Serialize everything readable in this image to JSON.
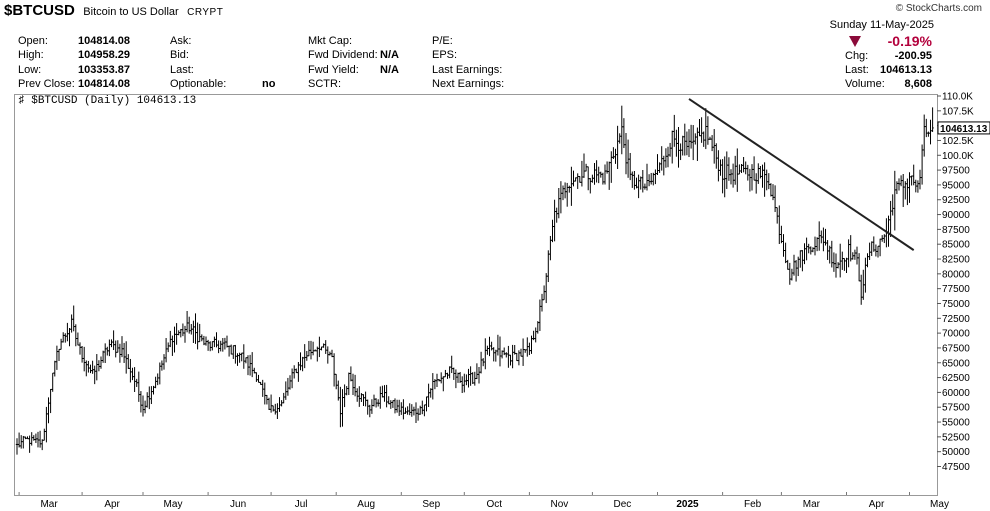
{
  "header": {
    "symbol": "$BTCUSD",
    "description": "Bitcoin to US Dollar",
    "exchange": "CRYPT",
    "copyright": "© StockCharts.com",
    "date": "Sunday  11-May-2025",
    "open_label": "Open:",
    "open": "104814.08",
    "high_label": "High:",
    "high": "104958.29",
    "low_label": "Low:",
    "low": "103353.87",
    "prev_close_label": "Prev Close:",
    "prev_close": "104814.08",
    "ask_label": "Ask:",
    "bid_label": "Bid:",
    "last_label": "Last:",
    "optionable_label": "Optionable:",
    "optionable": "no",
    "mktcap_label": "Mkt Cap:",
    "fwd_div_label": "Fwd Dividend:",
    "fwd_div": "N/A",
    "fwd_yield_label": "Fwd Yield:",
    "fwd_yield": "N/A",
    "sctr_label": "SCTR:",
    "pe_label": "P/E:",
    "eps_label": "EPS:",
    "last_earn_label": "Last Earnings:",
    "next_earn_label": "Next Earnings:",
    "pct_change": "-0.19%",
    "chg_label": "Chg:",
    "chg": "-200.95",
    "last2_label": "Last:",
    "last2": "104613.13",
    "volume_label": "Volume:",
    "volume": "8,608",
    "chart_label": "$BTCUSD (Daily) 104613.13"
  },
  "chart_data": {
    "type": "ohlc",
    "title": "$BTCUSD (Daily) 104613.13",
    "y_axis_side": "right",
    "ylim": [
      47000,
      111000
    ],
    "y_ticks": [
      47500,
      50000,
      52500,
      55000,
      57500,
      60000,
      62500,
      65000,
      67500,
      70000,
      72500,
      75000,
      77500,
      80000,
      82500,
      85000,
      87500,
      90000,
      92500,
      95000,
      97500,
      100000,
      102500,
      105000,
      107500,
      110000
    ],
    "y_tick_labels": [
      "47500",
      "50000",
      "52500",
      "55000",
      "57500",
      "60000",
      "62500",
      "65000",
      "67500",
      "70000",
      "72500",
      "75000",
      "77500",
      "80000",
      "82500",
      "85000",
      "87500",
      "90000",
      "92500",
      "95000",
      "97500",
      "100.0K",
      "102.5K",
      "105.0K",
      "107.5K",
      "110.0K"
    ],
    "x_labels": [
      "Mar",
      "Apr",
      "May",
      "Jun",
      "Jul",
      "Aug",
      "Sep",
      "Oct",
      "Nov",
      "Dec",
      "2025",
      "Feb",
      "Mar",
      "Apr",
      "May"
    ],
    "x_label_positions": [
      1,
      31,
      60,
      91,
      121,
      152,
      183,
      213,
      244,
      274,
      305,
      336,
      364,
      395,
      425
    ],
    "last_value": 104613.13,
    "last_value_label": "104613.13",
    "close_anchors": [
      [
        0,
        51000
      ],
      [
        4,
        52000
      ],
      [
        12,
        51500
      ],
      [
        16,
        61000
      ],
      [
        20,
        68000
      ],
      [
        26,
        71500
      ],
      [
        30,
        67000
      ],
      [
        36,
        63000
      ],
      [
        44,
        68000
      ],
      [
        50,
        67000
      ],
      [
        56,
        62000
      ],
      [
        60,
        57500
      ],
      [
        66,
        62000
      ],
      [
        74,
        69500
      ],
      [
        82,
        71000
      ],
      [
        90,
        68000
      ],
      [
        98,
        68000
      ],
      [
        106,
        66500
      ],
      [
        114,
        63000
      ],
      [
        120,
        57000
      ],
      [
        126,
        58000
      ],
      [
        132,
        63500
      ],
      [
        138,
        66500
      ],
      [
        144,
        68000
      ],
      [
        150,
        65500
      ],
      [
        154,
        57000
      ],
      [
        158,
        63000
      ],
      [
        162,
        60000
      ],
      [
        168,
        57500
      ],
      [
        174,
        59500
      ],
      [
        180,
        57500
      ],
      [
        186,
        56500
      ],
      [
        192,
        57000
      ],
      [
        198,
        61500
      ],
      [
        206,
        63500
      ],
      [
        212,
        62000
      ],
      [
        218,
        62500
      ],
      [
        224,
        67000
      ],
      [
        230,
        66500
      ],
      [
        236,
        66000
      ],
      [
        244,
        67000
      ],
      [
        250,
        75000
      ],
      [
        256,
        90000
      ],
      [
        262,
        95500
      ],
      [
        270,
        97000
      ],
      [
        280,
        96500
      ],
      [
        288,
        104000
      ],
      [
        292,
        96000
      ],
      [
        300,
        94500
      ],
      [
        306,
        98000
      ],
      [
        312,
        103000
      ],
      [
        320,
        101000
      ],
      [
        328,
        104000
      ],
      [
        336,
        97000
      ],
      [
        344,
        97000
      ],
      [
        352,
        97000
      ],
      [
        358,
        96000
      ],
      [
        364,
        86000
      ],
      [
        368,
        80000
      ],
      [
        372,
        82500
      ],
      [
        378,
        85000
      ],
      [
        384,
        86000
      ],
      [
        390,
        81500
      ],
      [
        396,
        84000
      ],
      [
        400,
        82000
      ],
      [
        402,
        77000
      ],
      [
        406,
        84000
      ],
      [
        410,
        85000
      ],
      [
        414,
        87000
      ],
      [
        418,
        94000
      ],
      [
        424,
        95500
      ],
      [
        426,
        97000
      ],
      [
        428,
        94000
      ],
      [
        430,
        96500
      ],
      [
        432,
        103500
      ],
      [
        436,
        104613.13
      ]
    ],
    "trendline": [
      [
        320,
        109500
      ],
      [
        427,
        84000
      ]
    ]
  }
}
